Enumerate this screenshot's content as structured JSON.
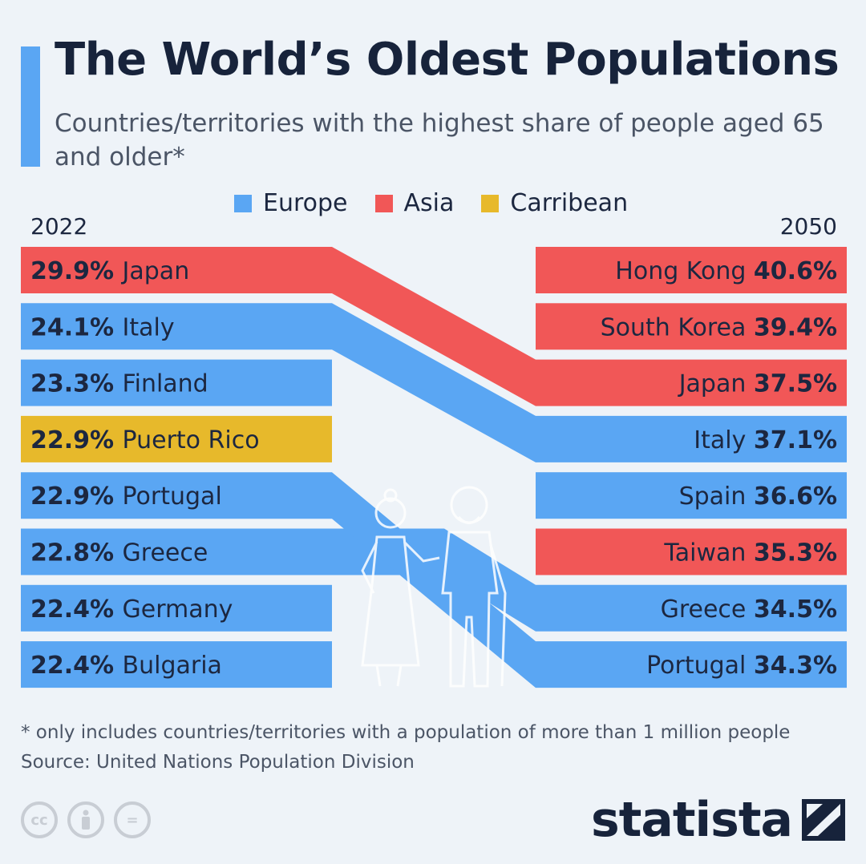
{
  "header": {
    "title": "The World’s Oldest Populations",
    "subtitle": "Countries/territories with the highest share of people aged 65 and older*"
  },
  "legend": [
    {
      "label": "Europe",
      "color": "#5aa6f3"
    },
    {
      "label": "Asia",
      "color": "#f15757"
    },
    {
      "label": "Carribean",
      "color": "#e7b92b"
    }
  ],
  "colors": {
    "Europe": "#5aa6f3",
    "Asia": "#f15757",
    "Carribean": "#e7b92b"
  },
  "years": {
    "left": "2022",
    "right": "2050"
  },
  "chart_data": {
    "type": "table",
    "columns": [
      "2022",
      "2050"
    ],
    "left": [
      {
        "country": "Japan",
        "value": 29.9,
        "label": "29.9%",
        "region": "Asia"
      },
      {
        "country": "Italy",
        "value": 24.1,
        "label": "24.1%",
        "region": "Europe"
      },
      {
        "country": "Finland",
        "value": 23.3,
        "label": "23.3%",
        "region": "Europe"
      },
      {
        "country": "Puerto Rico",
        "value": 22.9,
        "label": "22.9%",
        "region": "Carribean"
      },
      {
        "country": "Portugal",
        "value": 22.9,
        "label": "22.9%",
        "region": "Europe"
      },
      {
        "country": "Greece",
        "value": 22.8,
        "label": "22.8%",
        "region": "Europe"
      },
      {
        "country": "Germany",
        "value": 22.4,
        "label": "22.4%",
        "region": "Europe"
      },
      {
        "country": "Bulgaria",
        "value": 22.4,
        "label": "22.4%",
        "region": "Europe"
      }
    ],
    "right": [
      {
        "country": "Hong Kong",
        "value": 40.6,
        "label": "40.6%",
        "region": "Asia"
      },
      {
        "country": "South Korea",
        "value": 39.4,
        "label": "39.4%",
        "region": "Asia"
      },
      {
        "country": "Japan",
        "value": 37.5,
        "label": "37.5%",
        "region": "Asia"
      },
      {
        "country": "Italy",
        "value": 37.1,
        "label": "37.1%",
        "region": "Europe"
      },
      {
        "country": "Spain",
        "value": 36.6,
        "label": "36.6%",
        "region": "Europe"
      },
      {
        "country": "Taiwan",
        "value": 35.3,
        "label": "35.3%",
        "region": "Asia"
      },
      {
        "country": "Greece",
        "value": 34.5,
        "label": "34.5%",
        "region": "Europe"
      },
      {
        "country": "Portugal",
        "value": 34.3,
        "label": "34.3%",
        "region": "Europe"
      }
    ],
    "links": [
      {
        "country": "Japan",
        "from": 0,
        "to": 2
      },
      {
        "country": "Italy",
        "from": 1,
        "to": 3
      },
      {
        "country": "Portugal",
        "from": 4,
        "to": 7
      },
      {
        "country": "Greece",
        "from": 5,
        "to": 6
      }
    ]
  },
  "footnote": {
    "note": "* only includes countries/territories with a population of more than 1 million people",
    "source": "Source: United Nations Population Division"
  },
  "footer": {
    "cc_icons": [
      "cc-icon",
      "by-icon",
      "nd-icon"
    ],
    "cc_labels": [
      "cc",
      "="
    ],
    "brand": "statista"
  }
}
